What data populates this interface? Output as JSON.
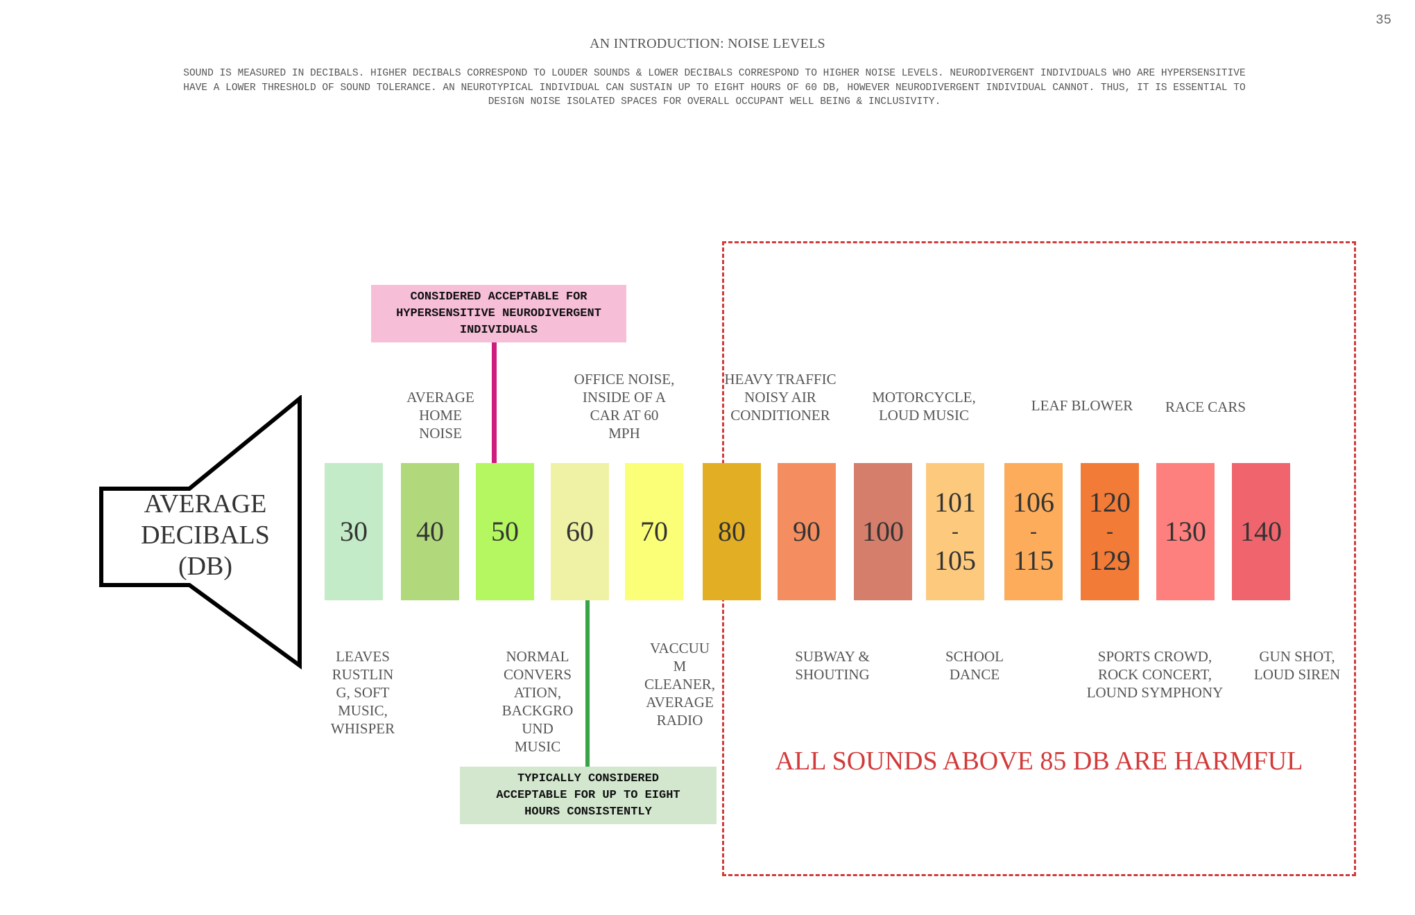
{
  "page_number": "35",
  "title": "AN INTRODUCTION: NOISE LEVELS",
  "intro_lines": [
    "SOUND IS MEASURED IN DECIBALS. HIGHER DECIBALS CORRESPOND TO LOUDER SOUNDS & LOWER DECIBALS CORRESPOND TO HIGHER NOISE LEVELS. NEURODIVERGENT INDIVIDUALS WHO ARE HYPERSENSITIVE",
    "HAVE A LOWER THRESHOLD OF SOUND TOLERANCE. AN NEUROTYPICAL INDIVIDUAL CAN SUSTAIN UP TO EIGHT HOURS OF 60 DB, HOWEVER  NEURODIVERGENT INDIVIDUAL CANNOT. THUS, IT IS ESSENTIAL TO",
    "DESIGN NOISE ISOLATED SPACES FOR OVERALL OCCUPANT WELL BEING & INCLUSIVITY."
  ],
  "speaker_label": [
    "AVERAGE",
    "DECIBALS",
    "(DB)"
  ],
  "callouts": {
    "pink": [
      "CONSIDERED ACCEPTABLE FOR",
      "HYPERSENSITIVE NEURODIVERGENT",
      "INDIVIDUALS"
    ],
    "green": [
      "TYPICALLY CONSIDERED",
      "ACCEPTABLE FOR UP TO EIGHT",
      "HOURS CONSISTENTLY"
    ]
  },
  "harm_label": "ALL SOUNDS ABOVE 85 DB ARE HARMFUL",
  "colors": {
    "harm_zone": "#d23a3a",
    "pink_callout": "#f7bed8",
    "pink_connector": "#cf1d7f",
    "green_callout": "#d3e7cf",
    "green_connector": "#36a447"
  },
  "bars": [
    {
      "lines": [
        "30"
      ],
      "color": "#c3ebc7"
    },
    {
      "lines": [
        "40"
      ],
      "color": "#b1d97c"
    },
    {
      "lines": [
        "50"
      ],
      "color": "#b5f760"
    },
    {
      "lines": [
        "60"
      ],
      "color": "#eff2a5"
    },
    {
      "lines": [
        "70"
      ],
      "color": "#fbfe77"
    },
    {
      "lines": [
        "80"
      ],
      "color": "#e1ae24"
    },
    {
      "lines": [
        "90"
      ],
      "color": "#f48e61"
    },
    {
      "lines": [
        "100"
      ],
      "color": "#d57e6c"
    },
    {
      "lines": [
        "101",
        "-",
        "105"
      ],
      "color": "#fdca7d"
    },
    {
      "lines": [
        "106",
        "-",
        "115"
      ],
      "color": "#fcac5b"
    },
    {
      "lines": [
        "120",
        "-",
        "129"
      ],
      "color": "#f17b37"
    },
    {
      "lines": [
        "130"
      ],
      "color": "#fd7f7e"
    },
    {
      "lines": [
        "140"
      ],
      "color": "#f0656d"
    }
  ],
  "labels_above": [
    {
      "lines": [
        "AVERAGE",
        "HOME",
        "NOISE"
      ]
    },
    {
      "lines": [
        "OFFICE NOISE,",
        "INSIDE OF A",
        "CAR AT 60",
        "MPH"
      ]
    },
    {
      "lines": [
        "HEAVY TRAFFIC",
        "NOISY AIR",
        "CONDITIONER"
      ]
    },
    {
      "lines": [
        "MOTORCYCLE,",
        "LOUD MUSIC"
      ]
    },
    {
      "lines": [
        "LEAF BLOWER"
      ]
    },
    {
      "lines": [
        "RACE CARS"
      ]
    }
  ],
  "labels_below": [
    {
      "lines": [
        "LEAVES",
        "RUSTLIN",
        "G, SOFT",
        "MUSIC,",
        "WHISPER"
      ]
    },
    {
      "lines": [
        "NORMAL",
        "CONVERS",
        "ATION,",
        "BACKGRO",
        "UND",
        "MUSIC"
      ]
    },
    {
      "lines": [
        "VACCUU",
        "M",
        "CLEANER,",
        "AVERAGE",
        "RADIO"
      ]
    },
    {
      "lines": [
        "SUBWAY &",
        "SHOUTING"
      ]
    },
    {
      "lines": [
        "SCHOOL",
        "DANCE"
      ]
    },
    {
      "lines": [
        "SPORTS CROWD,",
        "ROCK CONCERT,",
        "LOUND SYMPHONY"
      ]
    },
    {
      "lines": [
        "GUN SHOT,",
        "LOUD SIREN"
      ]
    }
  ]
}
